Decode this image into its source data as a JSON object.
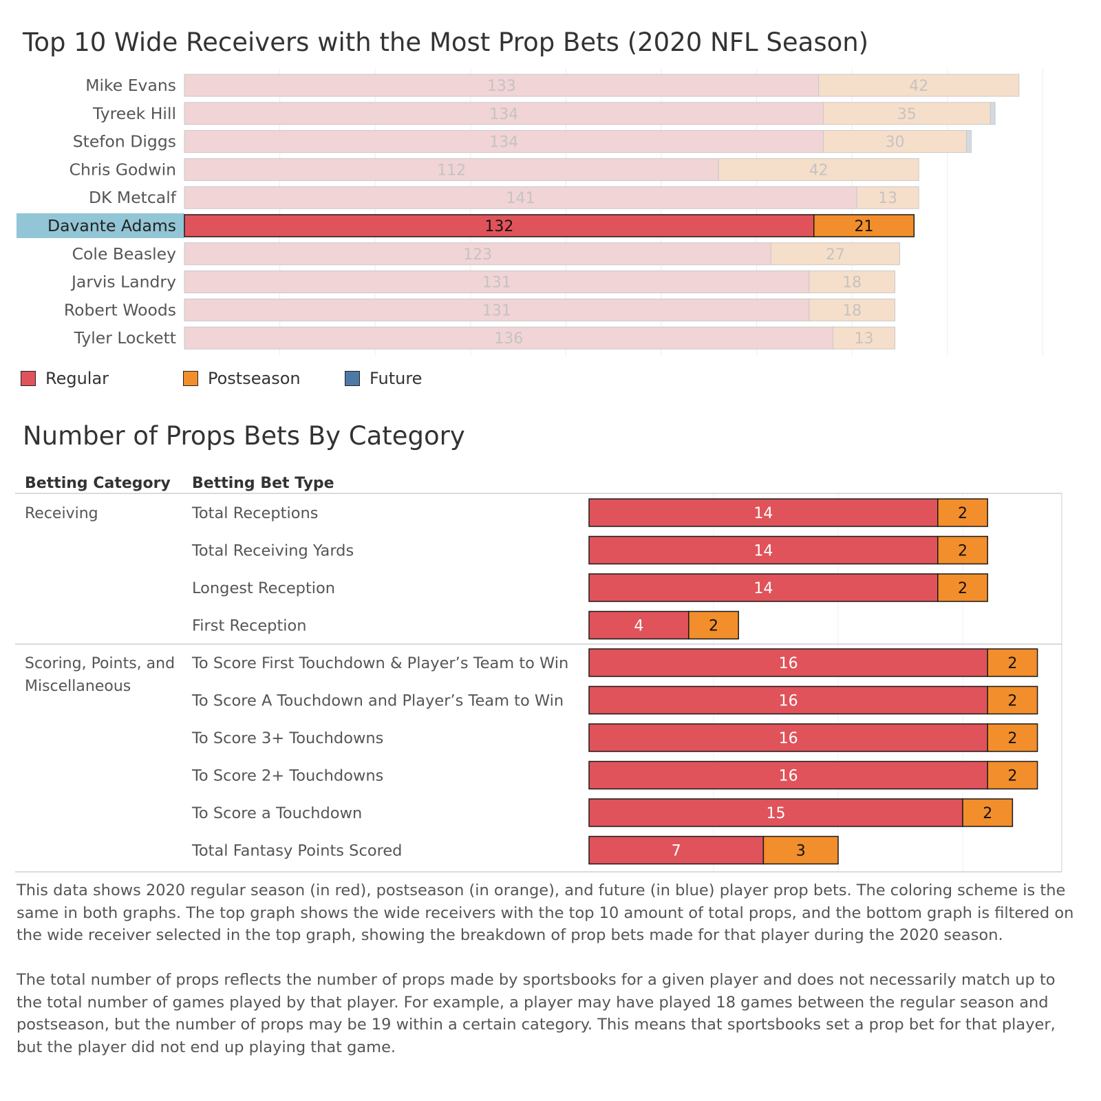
{
  "colors": {
    "regular": "#E0535A",
    "postseason": "#F28E2B",
    "future": "#4E79A7",
    "regular_faded": "#F0D4D6",
    "postseason_faded": "#F5DFCA",
    "future_faded": "#D2DAE3",
    "highlight_label_bg": "#92C5D5"
  },
  "chart_data": [
    {
      "type": "bar",
      "orientation": "horizontal",
      "stacked": true,
      "title": "Top 10 Wide Receivers with the Most Prop Bets (2020 NFL Season)",
      "selected": "Davante Adams",
      "categories": [
        "Mike Evans",
        "Tyreek Hill",
        "Stefon Diggs",
        "Chris Godwin",
        "DK Metcalf",
        "Davante Adams",
        "Cole Beasley",
        "Jarvis Landry",
        "Robert Woods",
        "Tyler Lockett"
      ],
      "series": [
        {
          "name": "Regular",
          "values": [
            133,
            134,
            134,
            112,
            141,
            132,
            123,
            131,
            131,
            136
          ]
        },
        {
          "name": "Postseason",
          "values": [
            42,
            35,
            30,
            42,
            13,
            21,
            27,
            18,
            18,
            13
          ]
        },
        {
          "name": "Future",
          "values": [
            0,
            1,
            1,
            0,
            0,
            0,
            0,
            0,
            0,
            0
          ]
        }
      ],
      "xlim": [
        0,
        180
      ],
      "grid": true,
      "legend": "bottom-left"
    },
    {
      "type": "bar",
      "orientation": "horizontal",
      "stacked": true,
      "title": "Number of Props Bets By Category",
      "column_headers": [
        "Betting Category",
        "Betting Bet Type"
      ],
      "groups": [
        {
          "name": "Receiving",
          "name_lines": [
            "Receiving"
          ],
          "rows": [
            {
              "label": "Total Receptions",
              "regular": 14,
              "postseason": 2
            },
            {
              "label": "Total Receiving Yards",
              "regular": 14,
              "postseason": 2
            },
            {
              "label": "Longest Reception",
              "regular": 14,
              "postseason": 2
            },
            {
              "label": "First Reception",
              "regular": 4,
              "postseason": 2
            }
          ]
        },
        {
          "name": "Scoring, Points, and Miscellaneous",
          "name_lines": [
            "Scoring, Points, and",
            "Miscellaneous"
          ],
          "rows": [
            {
              "label": "To Score First Touchdown & Player’s Team to Win",
              "regular": 16,
              "postseason": 2
            },
            {
              "label": "To Score A Touchdown and Player’s Team to Win",
              "regular": 16,
              "postseason": 2
            },
            {
              "label": "To Score 3+ Touchdowns",
              "regular": 16,
              "postseason": 2
            },
            {
              "label": "To Score 2+ Touchdowns",
              "regular": 16,
              "postseason": 2
            },
            {
              "label": "To Score a Touchdown",
              "regular": 15,
              "postseason": 2
            },
            {
              "label": "Total Fantasy Points Scored",
              "regular": 7,
              "postseason": 3
            }
          ]
        }
      ],
      "xlim": [
        0,
        18
      ],
      "grid": true
    }
  ],
  "legend": [
    {
      "label": "Regular",
      "color": "#E0535A"
    },
    {
      "label": "Postseason",
      "color": "#F28E2B"
    },
    {
      "label": "Future",
      "color": "#4E79A7"
    }
  ],
  "description": [
    "This data shows 2020 regular season (in red), postseason (in orange), and future (in blue) player prop bets. The coloring scheme is the same in both graphs. The top graph shows the wide receivers with the top 10 amount of total props, and the bottom graph is filtered on the wide receiver selected in the top graph, showing the breakdown of prop bets made for that player during the 2020 season.",
    "The total number of props reflects the number of props made by sportsbooks for a given player and does not necessarily match up to the total number of games played by that player. For example, a player may have played 18 games between the regular season and postseason, but the number of props may be 19 within a certain category. This means that sportsbooks set a prop bet for that player, but the player did not end up playing that game."
  ]
}
